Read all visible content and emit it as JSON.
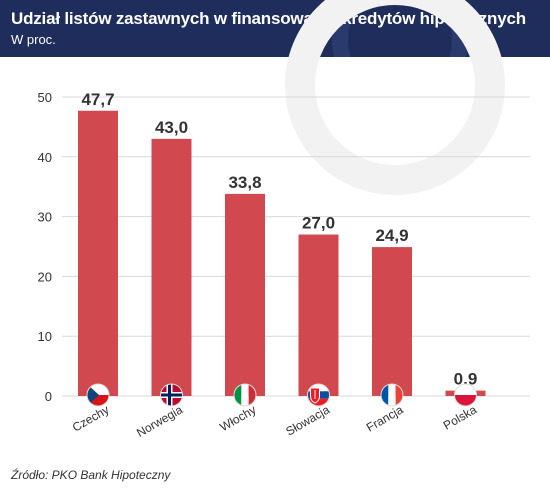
{
  "header": {
    "title": "Udział listów zastawnych w finansowaniu kredytów hipotecznych",
    "subtitle": "W proc."
  },
  "source": "Źródło: PKO Bank Hipoteczny",
  "colors": {
    "header_bg": "#1f2d5c",
    "bar": "#d1494f",
    "grid": "#d8d8d8"
  },
  "chart_data": {
    "type": "bar",
    "title": "Udział listów zastawnych w finansowaniu kredytów hipotecznych",
    "subtitle": "W proc.",
    "categories": [
      "Czechy",
      "Norwegia",
      "Włochy",
      "Słowacja",
      "Francja",
      "Polska"
    ],
    "values": [
      47.7,
      43.0,
      33.8,
      27.0,
      24.9,
      0.9
    ],
    "value_labels": [
      "47,7",
      "43,0",
      "33,8",
      "27,0",
      "24,9",
      "0,9"
    ],
    "flags": [
      "czech-flag-icon",
      "norway-flag-icon",
      "italy-flag-icon",
      "slovakia-flag-icon",
      "france-flag-icon",
      "poland-flag-icon"
    ],
    "yticks": [
      "0",
      "10",
      "20",
      "30",
      "40",
      "50"
    ],
    "ylim": [
      0,
      50
    ],
    "grid": true,
    "legend": "none"
  }
}
